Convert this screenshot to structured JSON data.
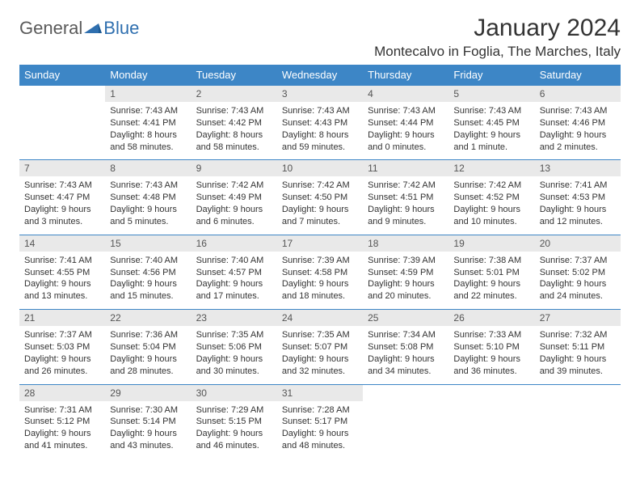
{
  "logo": {
    "text1": "General",
    "text2": "Blue"
  },
  "title": "January 2024",
  "location": "Montecalvo in Foglia, The Marches, Italy",
  "colors": {
    "header_bg": "#3d86c6",
    "header_text": "#ffffff",
    "daynum_bg": "#e9e9e9",
    "row_border": "#3d86c6",
    "body_text": "#333333",
    "logo_gray": "#5a5a5a",
    "logo_blue": "#2f6faf"
  },
  "day_headers": [
    "Sunday",
    "Monday",
    "Tuesday",
    "Wednesday",
    "Thursday",
    "Friday",
    "Saturday"
  ],
  "weeks": [
    {
      "nums": [
        "",
        "1",
        "2",
        "3",
        "4",
        "5",
        "6"
      ],
      "cells": [
        "",
        "Sunrise: 7:43 AM\nSunset: 4:41 PM\nDaylight: 8 hours and 58 minutes.",
        "Sunrise: 7:43 AM\nSunset: 4:42 PM\nDaylight: 8 hours and 58 minutes.",
        "Sunrise: 7:43 AM\nSunset: 4:43 PM\nDaylight: 8 hours and 59 minutes.",
        "Sunrise: 7:43 AM\nSunset: 4:44 PM\nDaylight: 9 hours and 0 minutes.",
        "Sunrise: 7:43 AM\nSunset: 4:45 PM\nDaylight: 9 hours and 1 minute.",
        "Sunrise: 7:43 AM\nSunset: 4:46 PM\nDaylight: 9 hours and 2 minutes."
      ]
    },
    {
      "nums": [
        "7",
        "8",
        "9",
        "10",
        "11",
        "12",
        "13"
      ],
      "cells": [
        "Sunrise: 7:43 AM\nSunset: 4:47 PM\nDaylight: 9 hours and 3 minutes.",
        "Sunrise: 7:43 AM\nSunset: 4:48 PM\nDaylight: 9 hours and 5 minutes.",
        "Sunrise: 7:42 AM\nSunset: 4:49 PM\nDaylight: 9 hours and 6 minutes.",
        "Sunrise: 7:42 AM\nSunset: 4:50 PM\nDaylight: 9 hours and 7 minutes.",
        "Sunrise: 7:42 AM\nSunset: 4:51 PM\nDaylight: 9 hours and 9 minutes.",
        "Sunrise: 7:42 AM\nSunset: 4:52 PM\nDaylight: 9 hours and 10 minutes.",
        "Sunrise: 7:41 AM\nSunset: 4:53 PM\nDaylight: 9 hours and 12 minutes."
      ]
    },
    {
      "nums": [
        "14",
        "15",
        "16",
        "17",
        "18",
        "19",
        "20"
      ],
      "cells": [
        "Sunrise: 7:41 AM\nSunset: 4:55 PM\nDaylight: 9 hours and 13 minutes.",
        "Sunrise: 7:40 AM\nSunset: 4:56 PM\nDaylight: 9 hours and 15 minutes.",
        "Sunrise: 7:40 AM\nSunset: 4:57 PM\nDaylight: 9 hours and 17 minutes.",
        "Sunrise: 7:39 AM\nSunset: 4:58 PM\nDaylight: 9 hours and 18 minutes.",
        "Sunrise: 7:39 AM\nSunset: 4:59 PM\nDaylight: 9 hours and 20 minutes.",
        "Sunrise: 7:38 AM\nSunset: 5:01 PM\nDaylight: 9 hours and 22 minutes.",
        "Sunrise: 7:37 AM\nSunset: 5:02 PM\nDaylight: 9 hours and 24 minutes."
      ]
    },
    {
      "nums": [
        "21",
        "22",
        "23",
        "24",
        "25",
        "26",
        "27"
      ],
      "cells": [
        "Sunrise: 7:37 AM\nSunset: 5:03 PM\nDaylight: 9 hours and 26 minutes.",
        "Sunrise: 7:36 AM\nSunset: 5:04 PM\nDaylight: 9 hours and 28 minutes.",
        "Sunrise: 7:35 AM\nSunset: 5:06 PM\nDaylight: 9 hours and 30 minutes.",
        "Sunrise: 7:35 AM\nSunset: 5:07 PM\nDaylight: 9 hours and 32 minutes.",
        "Sunrise: 7:34 AM\nSunset: 5:08 PM\nDaylight: 9 hours and 34 minutes.",
        "Sunrise: 7:33 AM\nSunset: 5:10 PM\nDaylight: 9 hours and 36 minutes.",
        "Sunrise: 7:32 AM\nSunset: 5:11 PM\nDaylight: 9 hours and 39 minutes."
      ]
    },
    {
      "nums": [
        "28",
        "29",
        "30",
        "31",
        "",
        "",
        ""
      ],
      "cells": [
        "Sunrise: 7:31 AM\nSunset: 5:12 PM\nDaylight: 9 hours and 41 minutes.",
        "Sunrise: 7:30 AM\nSunset: 5:14 PM\nDaylight: 9 hours and 43 minutes.",
        "Sunrise: 7:29 AM\nSunset: 5:15 PM\nDaylight: 9 hours and 46 minutes.",
        "Sunrise: 7:28 AM\nSunset: 5:17 PM\nDaylight: 9 hours and 48 minutes.",
        "",
        "",
        ""
      ]
    }
  ]
}
